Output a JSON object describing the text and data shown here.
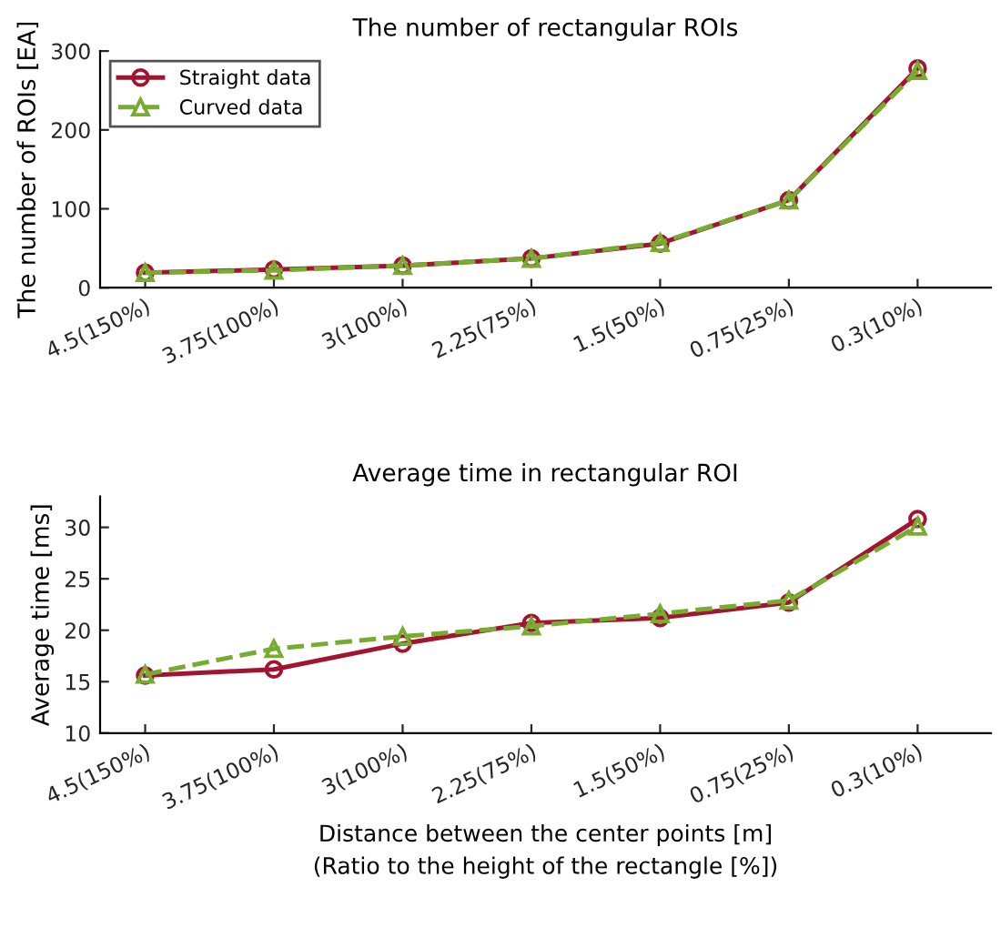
{
  "chart_data": [
    {
      "type": "line",
      "title": "The number of rectangular ROIs",
      "ylabel": "The number of ROIs [EA]",
      "categories": [
        "4.5(150%)",
        "3.75(100%)",
        "3(100%)",
        "2.25(75%)",
        "1.5(50%)",
        "0.75(25%)",
        "0.3(10%)"
      ],
      "series": [
        {
          "name": "Straight data",
          "color": "#a2142f",
          "marker": "circle",
          "line_style": "solid",
          "values": [
            19,
            23,
            28,
            37,
            56,
            111,
            278
          ]
        },
        {
          "name": "Curved data",
          "color": "#77ac30",
          "marker": "triangle",
          "line_style": "dashed",
          "values": [
            19,
            22,
            28,
            37,
            57,
            111,
            275
          ]
        }
      ],
      "ylim": [
        0,
        300
      ],
      "yticks": [
        0,
        100,
        200,
        300
      ],
      "legend": "top left"
    },
    {
      "type": "line",
      "title": "Average time in rectangular ROI",
      "ylabel": "Average time [ms]",
      "xlabel": "Distance between the center points [m]\n(Ratio to the height of the rectangle [%])",
      "categories": [
        "4.5(150%)",
        "3.75(100%)",
        "3(100%)",
        "2.25(75%)",
        "1.5(50%)",
        "0.75(25%)",
        "0.3(10%)"
      ],
      "series": [
        {
          "color": "#a2142f",
          "marker": "circle",
          "line_style": "solid",
          "values": [
            15.6,
            16.2,
            18.7,
            20.7,
            21.2,
            22.7,
            30.8
          ]
        },
        {
          "color": "#77ac30",
          "marker": "triangle",
          "line_style": "dashed",
          "values": [
            15.7,
            18.2,
            19.4,
            20.4,
            21.6,
            22.9,
            30.1
          ]
        }
      ],
      "ylim": [
        10,
        33
      ],
      "yticks": [
        10,
        15,
        20,
        25,
        30
      ]
    }
  ]
}
